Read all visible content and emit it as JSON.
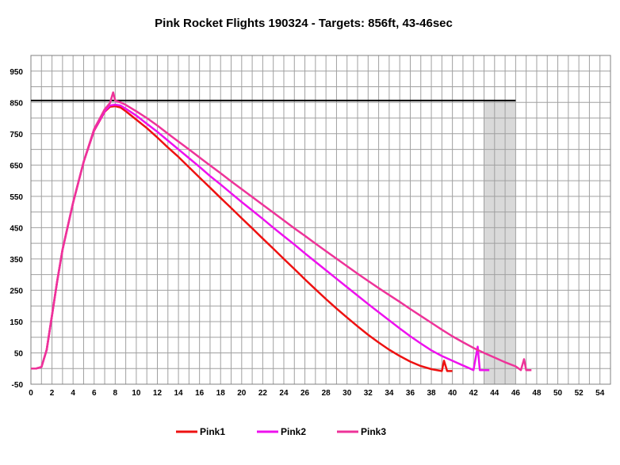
{
  "chart_data": {
    "type": "line",
    "title": "Pink Rocket Flights 190324 - Targets: 856ft, 43-46sec",
    "xlabel": "",
    "ylabel": "",
    "xlim": [
      0,
      55
    ],
    "ylim": [
      -50,
      1000
    ],
    "x_ticks": [
      0,
      2,
      4,
      6,
      8,
      10,
      12,
      14,
      16,
      18,
      20,
      22,
      24,
      26,
      28,
      30,
      32,
      34,
      36,
      38,
      40,
      42,
      44,
      46,
      48,
      50,
      52,
      54
    ],
    "y_ticks": [
      -50,
      50,
      150,
      250,
      350,
      450,
      550,
      650,
      750,
      850,
      950
    ],
    "x_tick_labels": [
      "0",
      "2",
      "4",
      "6",
      "8",
      "10",
      "12",
      "14",
      "16",
      "18",
      "20",
      "22",
      "24",
      "26",
      "28",
      "30",
      "32",
      "34",
      "36",
      "38",
      "40",
      "42",
      "44",
      "46",
      "48",
      "50",
      "52",
      "54"
    ],
    "y_tick_labels": [
      "-50",
      "50",
      "150",
      "250",
      "350",
      "450",
      "550",
      "650",
      "750",
      "850",
      "950"
    ],
    "grid": true,
    "legend_position": "bottom",
    "target_altitude": 856,
    "target_line_x": [
      0,
      46
    ],
    "target_time_window": [
      43,
      46
    ],
    "colors": {
      "target_line": "#000000",
      "target_window": "#d9d9d9",
      "grid": "#a0a0a0"
    },
    "series": [
      {
        "name": "Pink1",
        "color": "#ee1111",
        "points": [
          [
            0,
            0
          ],
          [
            0.5,
            0
          ],
          [
            1,
            5
          ],
          [
            1.5,
            60
          ],
          [
            2,
            170
          ],
          [
            2.5,
            280
          ],
          [
            3,
            380
          ],
          [
            4,
            530
          ],
          [
            5,
            660
          ],
          [
            6,
            760
          ],
          [
            7,
            820
          ],
          [
            7.5,
            836
          ],
          [
            8,
            838
          ],
          [
            8.5,
            834
          ],
          [
            9,
            822
          ],
          [
            10,
            795
          ],
          [
            11,
            768
          ],
          [
            12,
            738
          ],
          [
            13,
            706
          ],
          [
            14,
            676
          ],
          [
            15,
            643
          ],
          [
            16,
            610
          ],
          [
            17,
            578
          ],
          [
            18,
            545
          ],
          [
            19,
            513
          ],
          [
            20,
            480
          ],
          [
            21,
            448
          ],
          [
            22,
            415
          ],
          [
            23,
            383
          ],
          [
            24,
            350
          ],
          [
            25,
            318
          ],
          [
            26,
            285
          ],
          [
            27,
            253
          ],
          [
            28,
            222
          ],
          [
            29,
            192
          ],
          [
            30,
            163
          ],
          [
            31,
            135
          ],
          [
            32,
            108
          ],
          [
            33,
            83
          ],
          [
            34,
            60
          ],
          [
            35,
            40
          ],
          [
            36,
            22
          ],
          [
            37,
            8
          ],
          [
            38,
            -2
          ],
          [
            39,
            -8
          ],
          [
            39.2,
            25
          ],
          [
            39.5,
            -8
          ],
          [
            40,
            -8
          ]
        ]
      },
      {
        "name": "Pink2",
        "color": "#ee11ee",
        "points": [
          [
            0,
            0
          ],
          [
            0.5,
            0
          ],
          [
            1,
            5
          ],
          [
            1.5,
            60
          ],
          [
            2,
            170
          ],
          [
            2.5,
            280
          ],
          [
            3,
            380
          ],
          [
            4,
            530
          ],
          [
            5,
            660
          ],
          [
            6,
            762
          ],
          [
            7,
            822
          ],
          [
            7.5,
            840
          ],
          [
            8,
            843
          ],
          [
            8.5,
            840
          ],
          [
            9,
            830
          ],
          [
            10,
            808
          ],
          [
            11,
            782
          ],
          [
            12,
            756
          ],
          [
            13,
            728
          ],
          [
            14,
            700
          ],
          [
            15,
            672
          ],
          [
            16,
            644
          ],
          [
            17,
            615
          ],
          [
            18,
            588
          ],
          [
            19,
            560
          ],
          [
            20,
            532
          ],
          [
            21,
            505
          ],
          [
            22,
            478
          ],
          [
            23,
            450
          ],
          [
            24,
            423
          ],
          [
            25,
            396
          ],
          [
            26,
            368
          ],
          [
            27,
            341
          ],
          [
            28,
            314
          ],
          [
            29,
            287
          ],
          [
            30,
            260
          ],
          [
            31,
            233
          ],
          [
            32,
            206
          ],
          [
            33,
            180
          ],
          [
            34,
            154
          ],
          [
            35,
            128
          ],
          [
            36,
            103
          ],
          [
            37,
            80
          ],
          [
            38,
            58
          ],
          [
            39,
            40
          ],
          [
            40,
            25
          ],
          [
            41,
            10
          ],
          [
            42,
            -5
          ],
          [
            42.4,
            70
          ],
          [
            42.6,
            -5
          ],
          [
            43,
            -5
          ],
          [
            43.5,
            -5
          ]
        ]
      },
      {
        "name": "Pink3",
        "color": "#ee3399",
        "points": [
          [
            0,
            0
          ],
          [
            0.5,
            0
          ],
          [
            1,
            5
          ],
          [
            1.5,
            60
          ],
          [
            2,
            170
          ],
          [
            2.5,
            280
          ],
          [
            3,
            380
          ],
          [
            4,
            530
          ],
          [
            5,
            660
          ],
          [
            6,
            765
          ],
          [
            7,
            828
          ],
          [
            7.5,
            848
          ],
          [
            7.8,
            882
          ],
          [
            8,
            856
          ],
          [
            8.5,
            850
          ],
          [
            9,
            842
          ],
          [
            10,
            822
          ],
          [
            11,
            800
          ],
          [
            12,
            776
          ],
          [
            13,
            750
          ],
          [
            14,
            725
          ],
          [
            15,
            700
          ],
          [
            16,
            674
          ],
          [
            17,
            649
          ],
          [
            18,
            624
          ],
          [
            19,
            598
          ],
          [
            20,
            573
          ],
          [
            21,
            548
          ],
          [
            22,
            523
          ],
          [
            23,
            498
          ],
          [
            24,
            473
          ],
          [
            25,
            448
          ],
          [
            26,
            424
          ],
          [
            27,
            399
          ],
          [
            28,
            375
          ],
          [
            29,
            351
          ],
          [
            30,
            327
          ],
          [
            31,
            303
          ],
          [
            32,
            280
          ],
          [
            33,
            257
          ],
          [
            34,
            235
          ],
          [
            35,
            213
          ],
          [
            36,
            190
          ],
          [
            37,
            168
          ],
          [
            38,
            146
          ],
          [
            39,
            124
          ],
          [
            40,
            103
          ],
          [
            41,
            84
          ],
          [
            42,
            66
          ],
          [
            43,
            50
          ],
          [
            44,
            35
          ],
          [
            45,
            20
          ],
          [
            46,
            7
          ],
          [
            46.5,
            -5
          ],
          [
            46.8,
            30
          ],
          [
            47,
            -5
          ],
          [
            47.5,
            -5
          ]
        ]
      }
    ]
  }
}
